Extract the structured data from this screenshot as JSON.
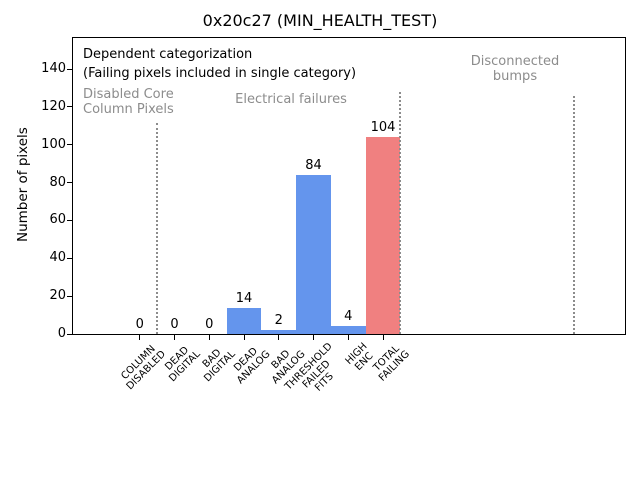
{
  "figure": {
    "title": "0x20c27 (MIN_HEALTH_TEST)"
  },
  "annotations": {
    "heading": "Dependent categorization",
    "subheading": "(Failing pixels included in single category)"
  },
  "sections": [
    {
      "label": "Disabled Core\nColumn Pixels"
    },
    {
      "label": "Electrical failures"
    },
    {
      "label": "Disconnected\nbumps"
    }
  ],
  "chart_data": {
    "type": "bar",
    "title": "0x20c27 (MIN_HEALTH_TEST)",
    "xlabel": "",
    "ylabel": "Number of pixels",
    "ylim": [
      0,
      157
    ],
    "yticks": [
      0,
      20,
      40,
      60,
      80,
      100,
      120,
      140
    ],
    "grid": false,
    "legend": null,
    "categories": [
      "COLUMN\nDISABLED",
      "DEAD\nDIGITAL",
      "BAD\nDIGITAL",
      "DEAD\nANALOG",
      "BAD\nANALOG",
      "THRESHOLD\nFAILED\nFITS",
      "HIGH\nENC",
      "TOTAL\nFAILING"
    ],
    "values": [
      0,
      0,
      0,
      14,
      2,
      84,
      4,
      104
    ],
    "value_labels": [
      "0",
      "0",
      "0",
      "14",
      "2",
      "84",
      "4",
      "104"
    ],
    "bar_colors": [
      "#6495ED",
      "#6495ED",
      "#6495ED",
      "#6495ED",
      "#6495ED",
      "#6495ED",
      "#6495ED",
      "#F08080"
    ],
    "section_dividers_x": [
      0.5,
      7.5,
      12.5
    ],
    "colors": {
      "blue_bar": "#6495ED",
      "red_bar": "#F08080",
      "annotation_gray": "#8c8c8c",
      "divider_gray": "#8c8c8c",
      "text_black": "#000000"
    }
  }
}
